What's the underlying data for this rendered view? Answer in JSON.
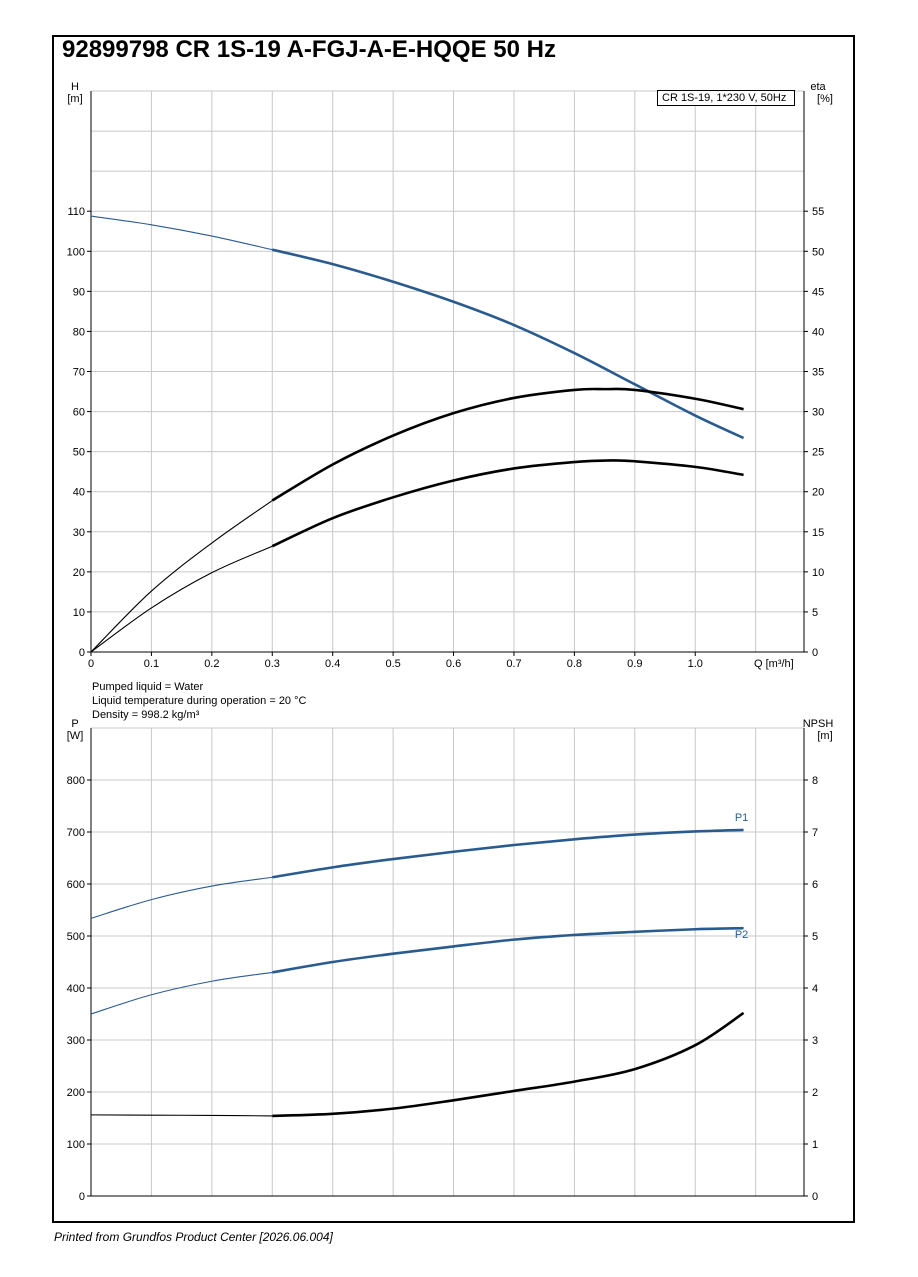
{
  "title": "92899798 CR 1S-19 A-FGJ-A-E-HQQE 50 Hz",
  "footer": "Printed from Grundfos Product Center [2026.06.004]",
  "info": {
    "liquid": "Pumped liquid = Water",
    "temperature": "Liquid temperature during operation = 20 °C",
    "density": "Density = 998.2 kg/m³"
  },
  "colors": {
    "blue": "#2a5b8f",
    "black": "#000000",
    "grid": "#c8c8c8"
  },
  "chart_data": [
    {
      "type": "line",
      "legend": "CR 1S-19, 1*230 V, 50Hz",
      "legend_position": "top-right",
      "grid": true,
      "xlabel": "Q [m³/h]",
      "ylabel_left": {
        "symbol": "H",
        "unit": "[m]"
      },
      "ylabel_right": {
        "symbol": "eta",
        "unit": "[%]"
      },
      "xlim": [
        0,
        1.18
      ],
      "ylim_left": [
        0,
        140
      ],
      "ylim_right": [
        0,
        70
      ],
      "x_ticks": [
        "0",
        "0.1",
        "0.2",
        "0.3",
        "0.4",
        "0.5",
        "0.6",
        "0.7",
        "0.8",
        "0.9",
        "1.0"
      ],
      "y_ticks_left": [
        "0",
        "10",
        "20",
        "30",
        "40",
        "50",
        "60",
        "70",
        "80",
        "90",
        "100",
        "110"
      ],
      "y_ticks_right": [
        "0",
        "5",
        "10",
        "15",
        "20",
        "25",
        "30",
        "35",
        "40",
        "45",
        "50",
        "55"
      ],
      "operating_range_start": 0.3,
      "series": [
        {
          "axis": "left",
          "color": "#2a5b8f",
          "x": [
            0,
            0.1,
            0.2,
            0.3,
            0.4,
            0.5,
            0.6,
            0.7,
            0.8,
            0.9,
            1.0,
            1.08
          ],
          "values": [
            108.8,
            106.6,
            103.8,
            100.4,
            96.8,
            92.4,
            87.4,
            81.6,
            74.6,
            66.8,
            59.0,
            53.4
          ]
        },
        {
          "axis": "right",
          "color": "#000000",
          "x": [
            0,
            0.1,
            0.2,
            0.3,
            0.4,
            0.5,
            0.6,
            0.7,
            0.8,
            0.85,
            0.9,
            1.0,
            1.08
          ],
          "values": [
            0,
            7.6,
            13.6,
            18.9,
            23.4,
            27.0,
            29.8,
            31.7,
            32.7,
            32.8,
            32.7,
            31.6,
            30.3
          ]
        },
        {
          "axis": "right",
          "color": "#000000",
          "x": [
            0,
            0.1,
            0.2,
            0.3,
            0.4,
            0.5,
            0.6,
            0.7,
            0.8,
            0.86,
            0.9,
            1.0,
            1.08
          ],
          "values": [
            0,
            5.5,
            9.9,
            13.2,
            16.7,
            19.3,
            21.4,
            22.9,
            23.7,
            23.9,
            23.8,
            23.1,
            22.1
          ]
        }
      ]
    },
    {
      "type": "line",
      "grid": true,
      "ylabel_left": {
        "symbol": "P",
        "unit": "[W]"
      },
      "ylabel_right": {
        "symbol": "NPSH",
        "unit": "[m]"
      },
      "xlim": [
        0,
        1.18
      ],
      "ylim_left": [
        0,
        900
      ],
      "ylim_right": [
        0,
        9
      ],
      "y_ticks_left": [
        "0",
        "100",
        "200",
        "300",
        "400",
        "500",
        "600",
        "700",
        "800"
      ],
      "y_ticks_right": [
        "0",
        "1",
        "2",
        "3",
        "4",
        "5",
        "6",
        "7",
        "8"
      ],
      "operating_range_start": 0.3,
      "series": [
        {
          "name": "P1",
          "axis": "left",
          "color": "#2a5b8f",
          "x": [
            0,
            0.1,
            0.2,
            0.3,
            0.4,
            0.5,
            0.6,
            0.7,
            0.8,
            0.9,
            1.0,
            1.08
          ],
          "values": [
            534,
            570,
            596,
            613,
            632,
            648,
            662,
            675,
            686,
            695,
            701,
            704
          ]
        },
        {
          "name": "P2",
          "axis": "left",
          "color": "#2a5b8f",
          "x": [
            0,
            0.1,
            0.2,
            0.3,
            0.4,
            0.5,
            0.6,
            0.7,
            0.8,
            0.9,
            1.0,
            1.08
          ],
          "values": [
            350,
            387,
            413,
            430,
            450,
            466,
            480,
            493,
            502,
            508,
            513,
            515
          ]
        },
        {
          "axis": "right",
          "color": "#000000",
          "x": [
            0,
            0.1,
            0.2,
            0.3,
            0.4,
            0.5,
            0.6,
            0.7,
            0.8,
            0.9,
            1.0,
            1.08
          ],
          "values": [
            1.56,
            1.555,
            1.55,
            1.54,
            1.58,
            1.68,
            1.84,
            2.02,
            2.2,
            2.44,
            2.9,
            3.52
          ]
        }
      ]
    }
  ]
}
